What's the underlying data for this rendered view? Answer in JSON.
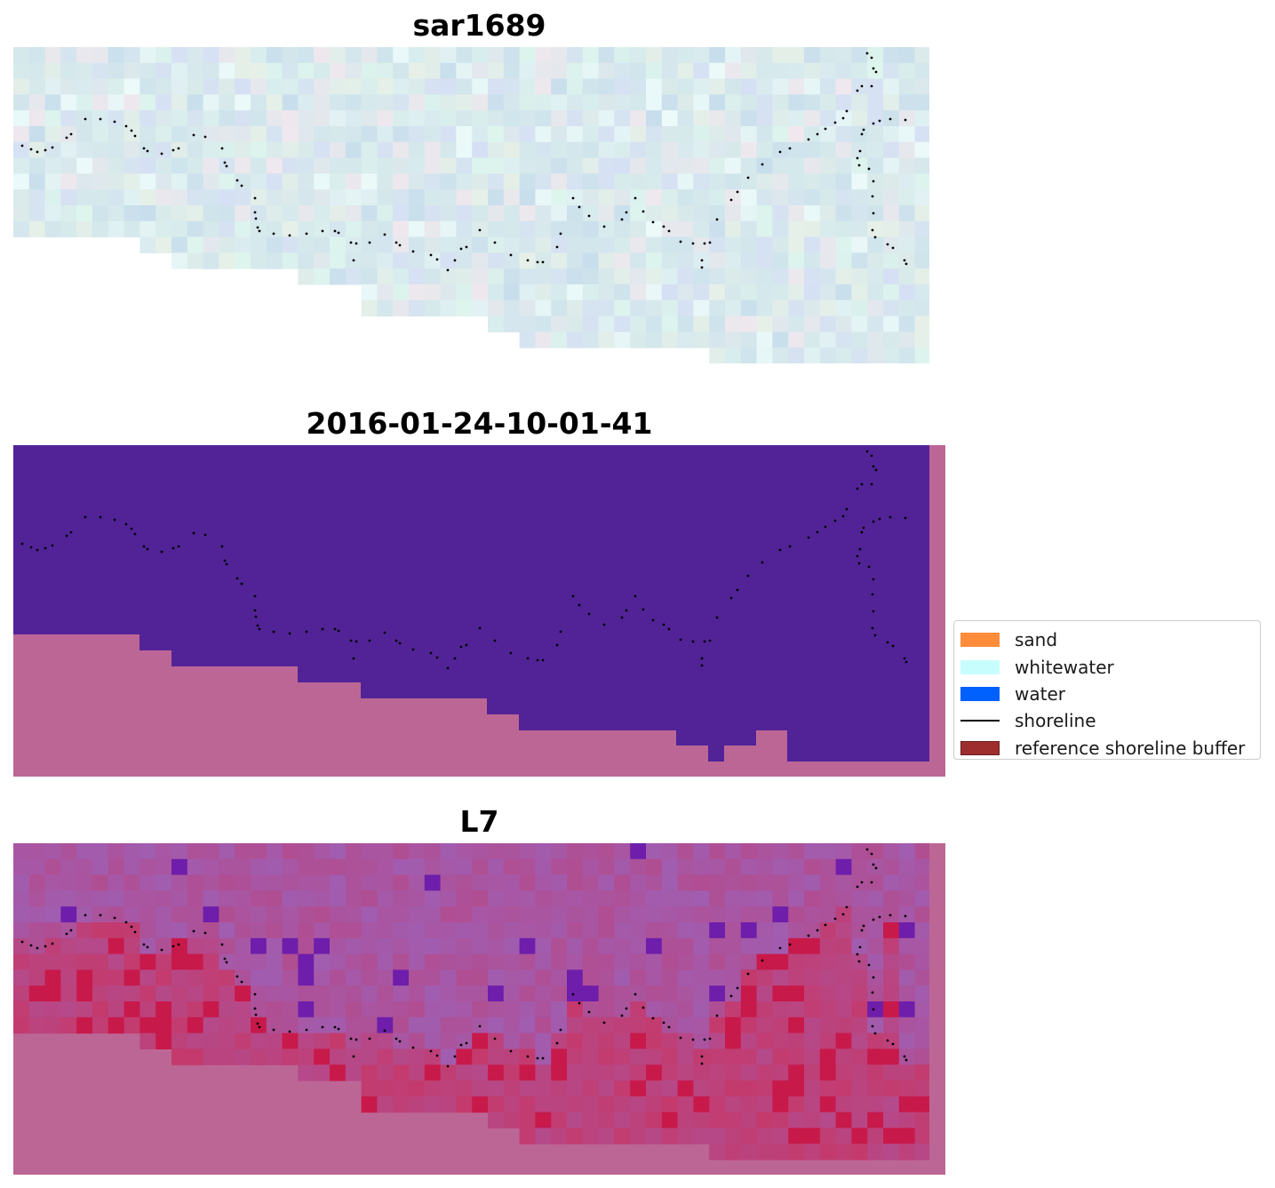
{
  "panels": [
    {
      "title": "sar1689"
    },
    {
      "title": "2016-01-24-10-01-41"
    },
    {
      "title": "L7"
    }
  ],
  "legend": {
    "items": [
      {
        "label": "sand",
        "color": "#ff8c3a",
        "kind": "patch"
      },
      {
        "label": "whitewater",
        "color": "#c8fdfd",
        "kind": "patch"
      },
      {
        "label": "water",
        "color": "#0061ff",
        "kind": "patch"
      },
      {
        "label": "shoreline",
        "color": "#000000",
        "kind": "line"
      },
      {
        "label": "reference shoreline buffer",
        "color": "#9e2e2e",
        "kind": "patch"
      }
    ]
  },
  "colors": {
    "land_mask": "#bc6695",
    "water_class": "#522397",
    "sar_base": "#d5e6ea",
    "l7_low": "#c43a6c",
    "l7_high": "#a15db0"
  }
}
